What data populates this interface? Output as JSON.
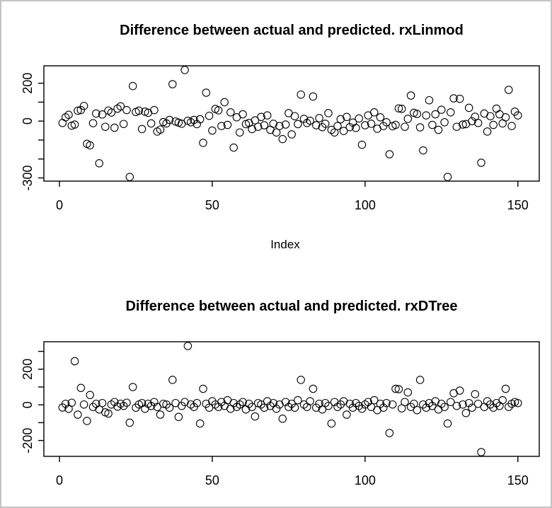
{
  "window": {
    "background": "#ffffff",
    "border_color": "#c3c3c3",
    "plot_symbol": "open-circle",
    "symbol_color": "#000000"
  },
  "chart_data": [
    {
      "type": "scatter",
      "title": "Difference between actual and predicted. rxLinmod",
      "xlabel": "Index",
      "ylabel": "",
      "x_note": "x values are the integer index 1..150",
      "xlim": [
        -5.1,
        157
      ],
      "ylim": [
        -317,
        292
      ],
      "grid": false,
      "x_ticks": [
        {
          "v": 0,
          "label": "0"
        },
        {
          "v": 50,
          "label": "50"
        },
        {
          "v": 100,
          "label": "100"
        },
        {
          "v": 150,
          "label": "150"
        }
      ],
      "y_ticks": [
        {
          "v": 200,
          "label": "200"
        },
        {
          "v": 100,
          "label": ""
        },
        {
          "v": 0,
          "label": "0"
        },
        {
          "v": -100,
          "label": ""
        },
        {
          "v": -200,
          "label": ""
        },
        {
          "v": -300,
          "label": "-300"
        }
      ],
      "values": [
        -10,
        20,
        33,
        -24,
        -18,
        55,
        58,
        80,
        -120,
        -128,
        -11,
        40,
        -223,
        35,
        -30,
        56,
        45,
        -35,
        66,
        78,
        -15,
        58,
        -295,
        185,
        48,
        55,
        -42,
        50,
        44,
        -12,
        58,
        -55,
        -45,
        -5,
        -12,
        6,
        195,
        -2,
        -8,
        -14,
        270,
        2,
        -6,
        6,
        -16,
        10,
        -115,
        150,
        28,
        -50,
        64,
        57,
        -26,
        100,
        -20,
        46,
        -140,
        20,
        -60,
        36,
        -16,
        -10,
        -42,
        4,
        -30,
        22,
        -22,
        30,
        -46,
        -14,
        -60,
        -26,
        -95,
        -18,
        42,
        -70,
        26,
        -16,
        140,
        12,
        -10,
        2,
        130,
        -22,
        16,
        -32,
        -14,
        42,
        -46,
        -60,
        -26,
        10,
        -52,
        22,
        -32,
        -8,
        -36,
        14,
        -125,
        -22,
        30,
        -14,
        46,
        -40,
        20,
        -26,
        -6,
        -175,
        -27,
        -20,
        67,
        65,
        -30,
        12,
        135,
        44,
        38,
        -33,
        -155,
        30,
        110,
        -20,
        36,
        -46,
        60,
        -6,
        -295,
        46,
        120,
        -30,
        118,
        -18,
        -16,
        70,
        0,
        23,
        -10,
        -220,
        40,
        -55,
        26,
        -20,
        66,
        36,
        -12,
        20,
        165,
        -26,
        50,
        30
      ]
    },
    {
      "type": "scatter",
      "title": "Difference between actual and predicted. rxDTree",
      "xlabel": "",
      "ylabel": "",
      "x_note": "x values are the integer index 1..150",
      "xlim": [
        -5.1,
        157
      ],
      "ylim": [
        -289,
        354
      ],
      "grid": false,
      "x_ticks": [
        {
          "v": 0,
          "label": "0"
        },
        {
          "v": 50,
          "label": "50"
        },
        {
          "v": 100,
          "label": "100"
        },
        {
          "v": 150,
          "label": "150"
        }
      ],
      "y_ticks": [
        {
          "v": 300,
          "label": ""
        },
        {
          "v": 200,
          "label": "200"
        },
        {
          "v": 100,
          "label": ""
        },
        {
          "v": 0,
          "label": "0"
        },
        {
          "v": -100,
          "label": ""
        },
        {
          "v": -200,
          "label": "-200"
        }
      ],
      "values": [
        -15,
        6,
        -22,
        12,
        245,
        -55,
        95,
        2,
        -90,
        55,
        -12,
        6,
        -26,
        10,
        -42,
        -49,
        2,
        16,
        -10,
        6,
        -6,
        12,
        -100,
        100,
        -16,
        2,
        10,
        -22,
        6,
        -6,
        16,
        -12,
        -55,
        6,
        2,
        -16,
        140,
        10,
        -68,
        -6,
        16,
        330,
        2,
        -12,
        10,
        -105,
        90,
        6,
        -16,
        20,
        2,
        -12,
        16,
        -6,
        26,
        -22,
        10,
        -12,
        2,
        16,
        -26,
        6,
        -12,
        -65,
        10,
        2,
        -16,
        20,
        -6,
        10,
        -22,
        2,
        -78,
        16,
        -12,
        6,
        -16,
        26,
        140,
        2,
        -12,
        20,
        90,
        -16,
        6,
        -26,
        10,
        -6,
        -105,
        16,
        -12,
        2,
        20,
        -55,
        6,
        -16,
        10,
        -6,
        -22,
        2,
        16,
        -12,
        26,
        -30,
        6,
        -16,
        10,
        -158,
        2,
        90,
        88,
        -20,
        16,
        70,
        -12,
        6,
        -30,
        140,
        2,
        -16,
        10,
        -6,
        20,
        -26,
        6,
        -12,
        -105,
        16,
        65,
        -6,
        80,
        2,
        -46,
        10,
        -16,
        60,
        6,
        -265,
        -12,
        20,
        2,
        -16,
        10,
        -6,
        26,
        90,
        -12,
        6,
        16,
        10
      ]
    }
  ]
}
